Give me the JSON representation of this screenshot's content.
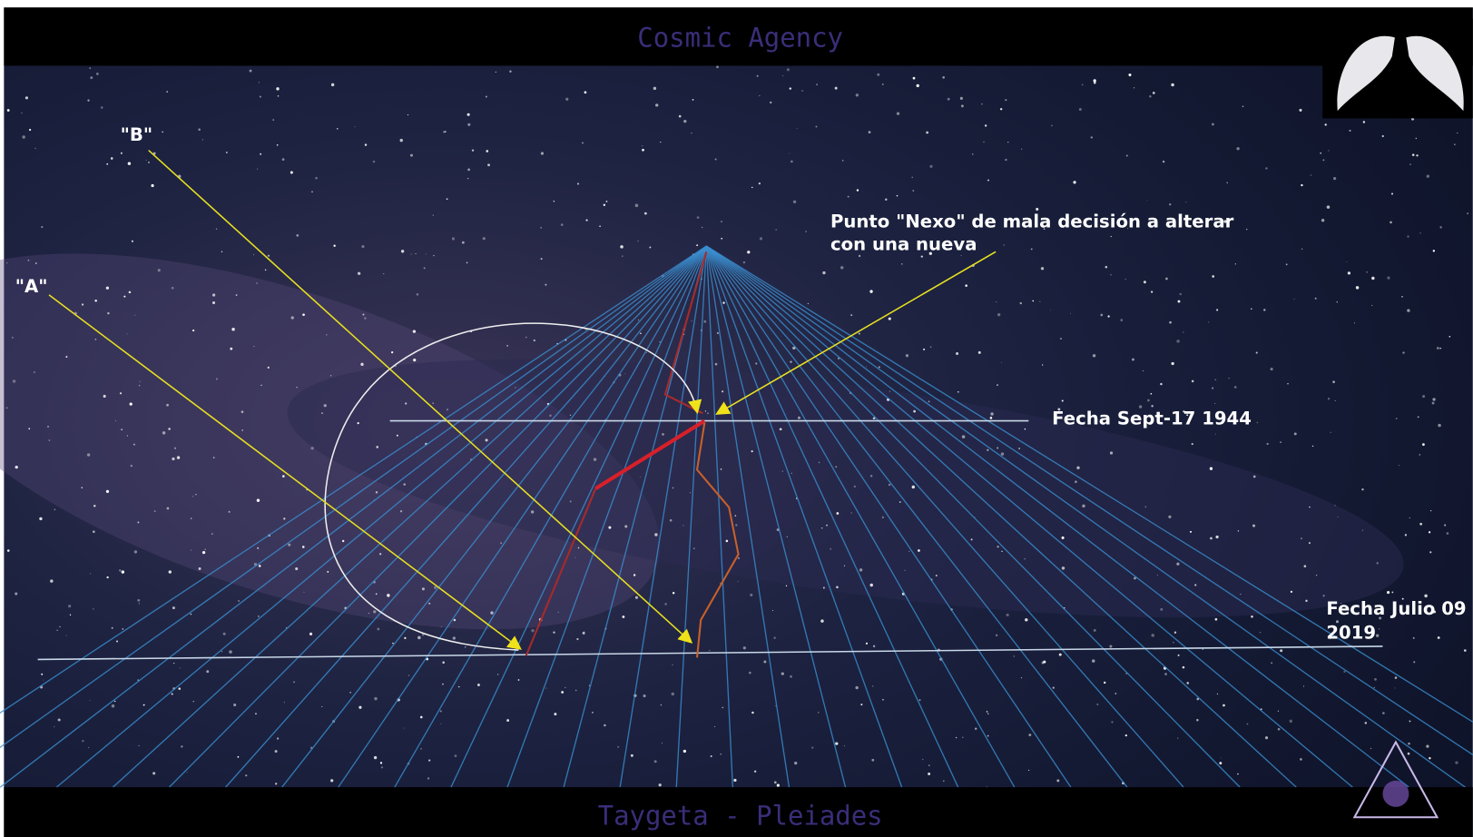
{
  "header": {
    "title": "Cosmic Agency"
  },
  "footer": {
    "title": "Taygeta - Pleiades"
  },
  "diagram": {
    "label_b": "\"B\"",
    "label_a": "\"A\"",
    "nexo_note": [
      "Punto \"Nexo\"  de mala decisión a alterar",
      "con una nueva"
    ],
    "date_1944": "Fecha Sept-17 1944",
    "date_2019": [
      "Fecha Julio 09",
      "2019"
    ]
  }
}
